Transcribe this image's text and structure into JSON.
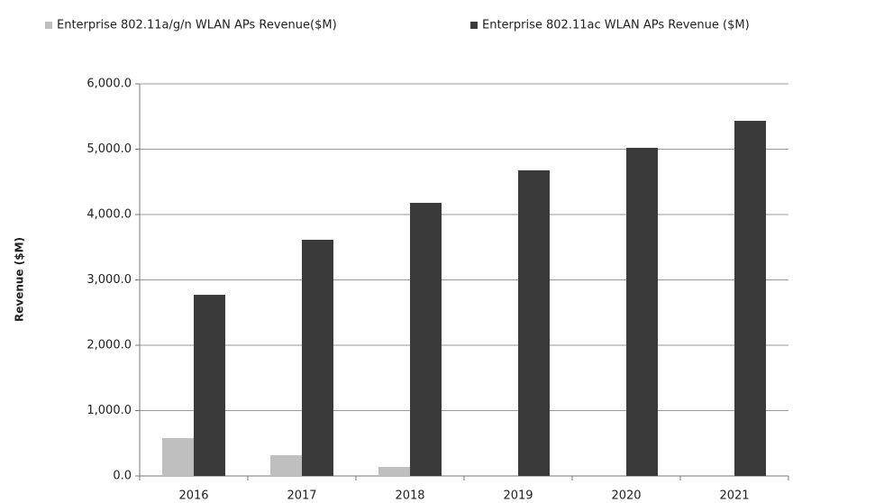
{
  "chart_data": {
    "type": "bar",
    "y_label": "Revenue ($M)",
    "categories": [
      "2016",
      "2017",
      "2018",
      "2019",
      "2020",
      "2021"
    ],
    "series": [
      {
        "name": "Enterprise 802.11a/g/n WLAN APs Revenue($M)",
        "color": "#bfbfbf",
        "values": [
          580,
          317,
          138,
          0,
          0,
          0
        ]
      },
      {
        "name": "Enterprise 802.11ac WLAN APs Revenue ($M)",
        "color": "#3a3a3a",
        "values": [
          2772,
          3614,
          4179,
          4676,
          5021,
          5434
        ]
      }
    ],
    "ylim": [
      0,
      6000
    ],
    "yticks": [
      {
        "value": 0,
        "label": "0.0"
      },
      {
        "value": 1000,
        "label": "1,000.0"
      },
      {
        "value": 2000,
        "label": "2,000.0"
      },
      {
        "value": 3000,
        "label": "3,000.0"
      },
      {
        "value": 4000,
        "label": "4,000.0"
      },
      {
        "value": 5000,
        "label": "5,000.0"
      },
      {
        "value": 6000,
        "label": "6,000.0"
      }
    ],
    "grid": true,
    "legend": "top"
  }
}
